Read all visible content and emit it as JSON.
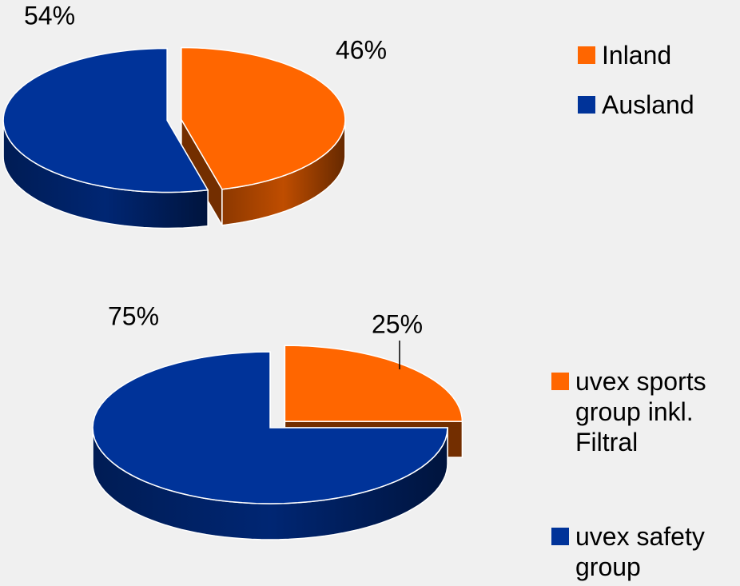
{
  "chart_data": [
    {
      "type": "pie3d",
      "series": [
        {
          "name": "Inland",
          "color": "#ff6600"
        },
        {
          "name": "Ausland",
          "color": "#003399"
        }
      ],
      "values": [
        46,
        54
      ],
      "value_labels": [
        "46%",
        "54%"
      ]
    },
    {
      "type": "pie3d",
      "series": [
        {
          "name": "uvex sports group inkl. Filtral",
          "color": "#ff6600"
        },
        {
          "name": "uvex safety group",
          "color": "#003399"
        }
      ],
      "values": [
        25,
        75
      ],
      "value_labels": [
        "25%",
        "75%"
      ]
    }
  ]
}
